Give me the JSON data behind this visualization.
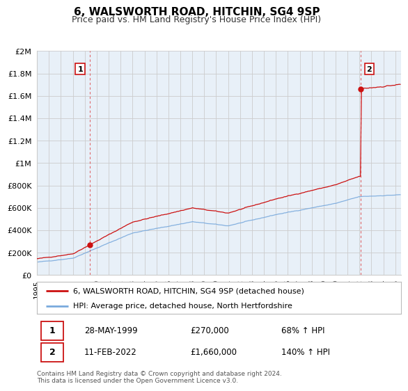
{
  "title": "6, WALSWORTH ROAD, HITCHIN, SG4 9SP",
  "subtitle": "Price paid vs. HM Land Registry's House Price Index (HPI)",
  "ylim": [
    0,
    2000000
  ],
  "xlim_start": 1995.0,
  "xlim_end": 2025.5,
  "yticks": [
    0,
    200000,
    400000,
    600000,
    800000,
    1000000,
    1200000,
    1400000,
    1600000,
    1800000,
    2000000
  ],
  "ytick_labels": [
    "£0",
    "£200K",
    "£400K",
    "£600K",
    "£800K",
    "£1M",
    "£1.2M",
    "£1.4M",
    "£1.6M",
    "£1.8M",
    "£2M"
  ],
  "xtick_years": [
    1995,
    1996,
    1997,
    1998,
    1999,
    2000,
    2001,
    2002,
    2003,
    2004,
    2005,
    2006,
    2007,
    2008,
    2009,
    2010,
    2011,
    2012,
    2013,
    2014,
    2015,
    2016,
    2017,
    2018,
    2019,
    2020,
    2021,
    2022,
    2023,
    2024,
    2025
  ],
  "sale1_x": 1999.41,
  "sale1_y": 270000,
  "sale1_label": "1",
  "sale2_x": 2022.12,
  "sale2_y": 1660000,
  "sale2_label": "2",
  "vline_color": "#dd4444",
  "hpi_color": "#7aaadd",
  "price_color": "#cc1111",
  "legend_house_label": "6, WALSWORTH ROAD, HITCHIN, SG4 9SP (detached house)",
  "legend_hpi_label": "HPI: Average price, detached house, North Hertfordshire",
  "annotation1_date": "28-MAY-1999",
  "annotation1_price": "£270,000",
  "annotation1_hpi": "68% ↑ HPI",
  "annotation2_date": "11-FEB-2022",
  "annotation2_price": "£1,660,000",
  "annotation2_hpi": "140% ↑ HPI",
  "footnote": "Contains HM Land Registry data © Crown copyright and database right 2024.\nThis data is licensed under the Open Government Licence v3.0.",
  "background_color": "#ffffff",
  "plot_bg_color": "#e8f0f8",
  "grid_color": "#cccccc"
}
